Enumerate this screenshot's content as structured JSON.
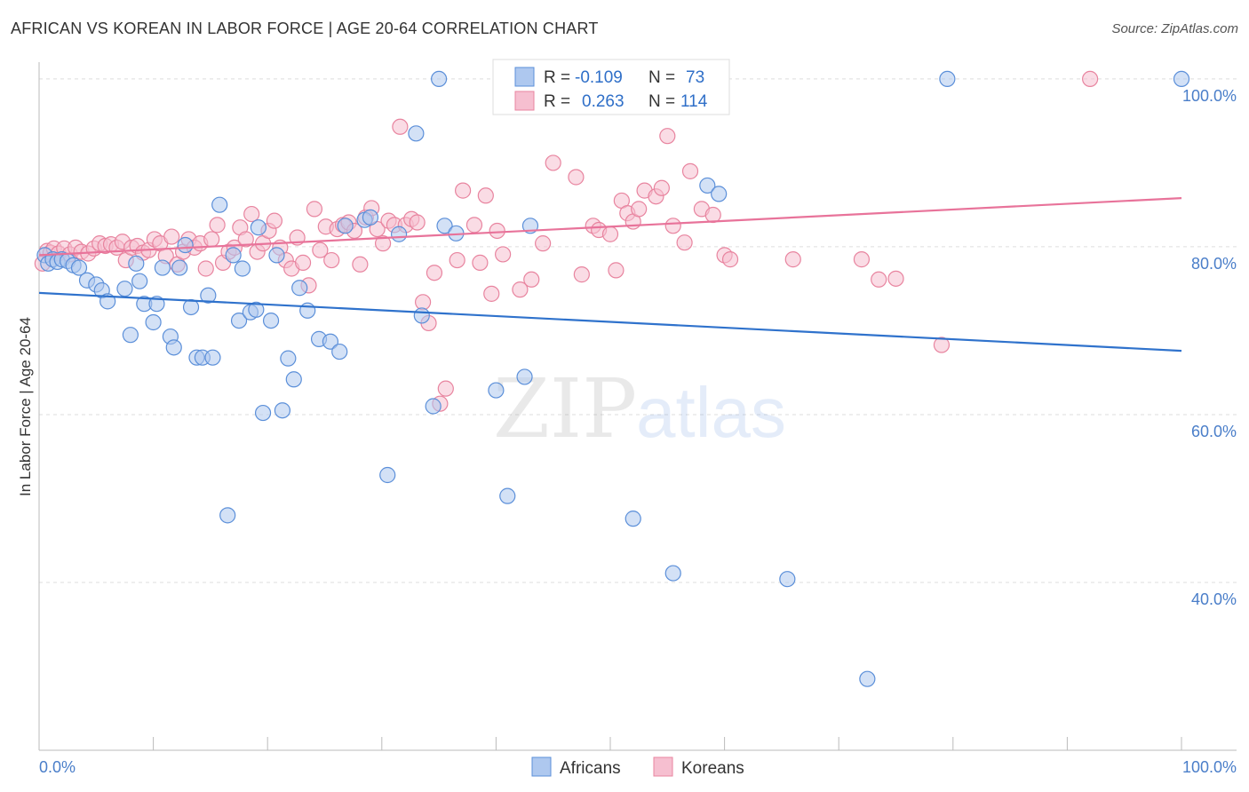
{
  "title": "AFRICAN VS KOREAN IN LABOR FORCE | AGE 20-64 CORRELATION CHART",
  "source": "Source: ZipAtlas.com",
  "colors": {
    "africans_fill": "#aec8ef",
    "africans_stroke": "#5b8fd9",
    "africans_line": "#2f72cc",
    "koreans_fill": "#f6bfd0",
    "koreans_stroke": "#e8849f",
    "koreans_line": "#e8739a",
    "tick_text": "#4a7ec9",
    "grid": "#dddddd"
  },
  "legend": {
    "r_label": "R =",
    "n_label": "N =",
    "rows": [
      {
        "name": "Africans",
        "r": "-0.109",
        "n": "73"
      },
      {
        "name": "Koreans",
        "r": "0.263",
        "n": "114"
      }
    ]
  },
  "watermark": {
    "zip": "ZIP",
    "atlas": "atlas"
  },
  "chart_data": {
    "type": "scatter",
    "title": "AFRICAN VS KOREAN IN LABOR FORCE | AGE 20-64 CORRELATION CHART",
    "xlabel": "",
    "ylabel": "In Labor Force | Age 20-64",
    "xlim": [
      0,
      100
    ],
    "ylim": [
      20,
      102
    ],
    "x_tick_labels": [
      "0.0%",
      "100.0%"
    ],
    "y_ticks": [
      40,
      60,
      80,
      100
    ],
    "y_tick_labels": [
      "40.0%",
      "60.0%",
      "80.0%",
      "100.0%"
    ],
    "grid": true,
    "legend_placement": "top-center",
    "series": [
      {
        "name": "Africans",
        "r": -0.109,
        "n": 73,
        "trend": {
          "x": [
            0,
            100
          ],
          "y": [
            74.5,
            67.6
          ]
        },
        "points": [
          [
            0.5,
            79
          ],
          [
            0.8,
            78
          ],
          [
            1.2,
            78.5
          ],
          [
            1.6,
            78.2
          ],
          [
            2.0,
            78.5
          ],
          [
            2.5,
            78.3
          ],
          [
            3.0,
            77.8
          ],
          [
            3.5,
            77.5
          ],
          [
            4.2,
            76
          ],
          [
            5.0,
            75.5
          ],
          [
            5.5,
            74.8
          ],
          [
            6.0,
            73.5
          ],
          [
            7.5,
            75
          ],
          [
            8.0,
            69.5
          ],
          [
            8.5,
            78
          ],
          [
            8.8,
            75.9
          ],
          [
            9.2,
            73.2
          ],
          [
            10,
            71
          ],
          [
            10.3,
            73.2
          ],
          [
            10.8,
            77.5
          ],
          [
            11.5,
            69.3
          ],
          [
            11.8,
            68
          ],
          [
            12.3,
            77.5
          ],
          [
            12.8,
            80.2
          ],
          [
            13.3,
            72.8
          ],
          [
            13.8,
            66.8
          ],
          [
            14.3,
            66.8
          ],
          [
            14.8,
            74.2
          ],
          [
            15.2,
            66.8
          ],
          [
            15.8,
            85
          ],
          [
            16.5,
            48
          ],
          [
            17,
            79
          ],
          [
            17.5,
            71.2
          ],
          [
            17.8,
            77.4
          ],
          [
            18.5,
            72.2
          ],
          [
            19,
            72.5
          ],
          [
            19.2,
            82.3
          ],
          [
            19.6,
            60.2
          ],
          [
            20.3,
            71.2
          ],
          [
            20.8,
            79
          ],
          [
            21.3,
            60.5
          ],
          [
            21.8,
            66.7
          ],
          [
            22.3,
            64.2
          ],
          [
            22.8,
            75.1
          ],
          [
            23.5,
            72.4
          ],
          [
            24.5,
            69
          ],
          [
            25.5,
            68.7
          ],
          [
            26.3,
            67.5
          ],
          [
            26.8,
            82.5
          ],
          [
            28.5,
            83.2
          ],
          [
            29,
            83.5
          ],
          [
            30.5,
            52.8
          ],
          [
            31.5,
            81.5
          ],
          [
            33,
            93.5
          ],
          [
            33.5,
            71.8
          ],
          [
            34.5,
            61
          ],
          [
            35,
            100
          ],
          [
            35.5,
            82.5
          ],
          [
            36.5,
            81.6
          ],
          [
            40,
            62.9
          ],
          [
            41,
            50.3
          ],
          [
            42.5,
            64.5
          ],
          [
            43,
            82.5
          ],
          [
            52,
            47.6
          ],
          [
            55.5,
            41.1
          ],
          [
            58.5,
            87.3
          ],
          [
            59.5,
            86.3
          ],
          [
            65.5,
            40.4
          ],
          [
            72.5,
            28.5
          ],
          [
            79.5,
            100
          ],
          [
            100,
            100
          ]
        ]
      },
      {
        "name": "Koreans",
        "r": 0.263,
        "n": 114,
        "trend": {
          "x": [
            0,
            100
          ],
          "y": [
            79.0,
            85.8
          ]
        },
        "points": [
          [
            0.3,
            78
          ],
          [
            0.7,
            79.5
          ],
          [
            1.0,
            79.3
          ],
          [
            1.3,
            79.8
          ],
          [
            1.7,
            79.2
          ],
          [
            2.2,
            79.8
          ],
          [
            2.7,
            79.1
          ],
          [
            3.2,
            79.9
          ],
          [
            3.7,
            79.4
          ],
          [
            4.3,
            79.2
          ],
          [
            4.8,
            79.8
          ],
          [
            5.3,
            80.4
          ],
          [
            5.8,
            80.1
          ],
          [
            6.3,
            80.3
          ],
          [
            6.8,
            79.9
          ],
          [
            7.3,
            80.6
          ],
          [
            7.6,
            78.4
          ],
          [
            8.1,
            79.9
          ],
          [
            8.6,
            80.1
          ],
          [
            9.1,
            79.3
          ],
          [
            9.6,
            79.6
          ],
          [
            10.1,
            80.9
          ],
          [
            10.6,
            80.4
          ],
          [
            11.1,
            78.9
          ],
          [
            11.6,
            81.2
          ],
          [
            12.1,
            77.9
          ],
          [
            12.6,
            79.4
          ],
          [
            13.1,
            80.9
          ],
          [
            13.6,
            79.9
          ],
          [
            14.1,
            80.4
          ],
          [
            14.6,
            77.4
          ],
          [
            15.1,
            80.9
          ],
          [
            15.6,
            82.6
          ],
          [
            16.1,
            78.1
          ],
          [
            16.6,
            79.4
          ],
          [
            17.1,
            79.9
          ],
          [
            17.6,
            82.3
          ],
          [
            18.1,
            80.9
          ],
          [
            18.6,
            83.9
          ],
          [
            19.1,
            79.4
          ],
          [
            19.6,
            80.4
          ],
          [
            20.1,
            81.9
          ],
          [
            20.6,
            83.1
          ],
          [
            21.1,
            79.9
          ],
          [
            21.6,
            78.4
          ],
          [
            22.1,
            77.4
          ],
          [
            22.6,
            81.1
          ],
          [
            23.1,
            78.1
          ],
          [
            23.6,
            75.4
          ],
          [
            24.1,
            84.5
          ],
          [
            24.6,
            79.6
          ],
          [
            25.1,
            82.4
          ],
          [
            25.6,
            78.4
          ],
          [
            26.1,
            82.1
          ],
          [
            26.6,
            82.6
          ],
          [
            27.1,
            82.9
          ],
          [
            27.6,
            81.9
          ],
          [
            28.1,
            77.9
          ],
          [
            28.6,
            83.5
          ],
          [
            29.1,
            84.6
          ],
          [
            29.6,
            82.1
          ],
          [
            30.1,
            80.4
          ],
          [
            30.6,
            83.1
          ],
          [
            31.1,
            82.6
          ],
          [
            31.6,
            94.3
          ],
          [
            32.1,
            82.6
          ],
          [
            32.6,
            83.3
          ],
          [
            33.1,
            82.9
          ],
          [
            33.6,
            73.4
          ],
          [
            34.1,
            70.9
          ],
          [
            34.6,
            76.9
          ],
          [
            35.1,
            61.3
          ],
          [
            35.6,
            63.1
          ],
          [
            36.6,
            78.4
          ],
          [
            37.1,
            86.7
          ],
          [
            38.1,
            82.6
          ],
          [
            38.6,
            78.1
          ],
          [
            39.1,
            86.1
          ],
          [
            39.6,
            74.4
          ],
          [
            40.1,
            81.9
          ],
          [
            40.6,
            79.1
          ],
          [
            41.1,
            99.8
          ],
          [
            42.1,
            74.9
          ],
          [
            43.1,
            76.1
          ],
          [
            44.1,
            80.4
          ],
          [
            45,
            90
          ],
          [
            47,
            88.3
          ],
          [
            47.5,
            76.7
          ],
          [
            48.5,
            82.5
          ],
          [
            49,
            82
          ],
          [
            50,
            81.5
          ],
          [
            50.5,
            77.2
          ],
          [
            51,
            85.5
          ],
          [
            51.5,
            84
          ],
          [
            52,
            83
          ],
          [
            52.5,
            84.5
          ],
          [
            53,
            86.7
          ],
          [
            54,
            86
          ],
          [
            54.5,
            87
          ],
          [
            55,
            93.2
          ],
          [
            55.5,
            82.5
          ],
          [
            56.5,
            80.5
          ],
          [
            57,
            89
          ],
          [
            58,
            84.5
          ],
          [
            59,
            83.8
          ],
          [
            60,
            79
          ],
          [
            60.5,
            78.5
          ],
          [
            66,
            78.5
          ],
          [
            72,
            78.5
          ],
          [
            73.5,
            76.1
          ],
          [
            75,
            76.2
          ],
          [
            79,
            68.3
          ],
          [
            92,
            100
          ]
        ]
      }
    ]
  }
}
